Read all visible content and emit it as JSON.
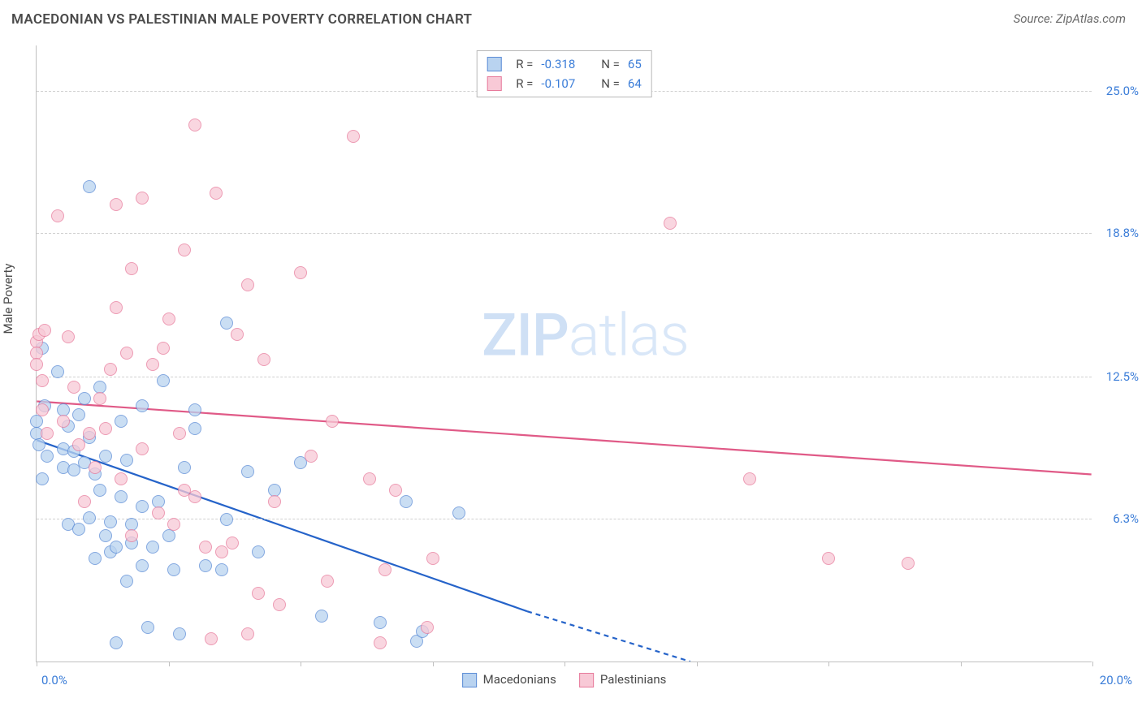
{
  "title": "MACEDONIAN VS PALESTINIAN MALE POVERTY CORRELATION CHART",
  "source": "Source: ZipAtlas.com",
  "ylabel": "Male Poverty",
  "watermark_bold": "ZIP",
  "watermark_thin": "atlas",
  "chart": {
    "type": "scatter",
    "xlim": [
      0,
      20
    ],
    "ylim": [
      0,
      27
    ],
    "x_ticks": [
      0,
      2.5,
      5,
      7.5,
      10,
      12.5,
      15,
      17.5,
      20
    ],
    "x_tick_labels_shown": {
      "first": "0.0%",
      "last": "20.0%"
    },
    "y_gridlines": [
      6.3,
      12.5,
      18.8,
      25.0
    ],
    "y_tick_labels": [
      "6.3%",
      "12.5%",
      "18.8%",
      "25.0%"
    ],
    "grid_color": "#d0d0d0",
    "background_color": "#ffffff",
    "marker_size": 16,
    "series": [
      {
        "name": "Macedonians",
        "color_fill": "#b9d3f0",
        "color_stroke": "#5b8cd6",
        "R": "-0.318",
        "N": "65",
        "trend": {
          "x1": 0,
          "y1": 9.7,
          "x2": 9.3,
          "y2": 2.2,
          "extrap_x2": 14.5,
          "extrap_y2": -1.5,
          "stroke": "#2563c9",
          "width": 2.2
        },
        "points": [
          [
            0.0,
            10.5
          ],
          [
            0.0,
            10.0
          ],
          [
            0.05,
            9.5
          ],
          [
            0.1,
            13.7
          ],
          [
            0.1,
            8.0
          ],
          [
            0.15,
            11.2
          ],
          [
            0.2,
            9.0
          ],
          [
            1.0,
            20.8
          ],
          [
            0.4,
            12.7
          ],
          [
            0.5,
            9.3
          ],
          [
            0.5,
            8.5
          ],
          [
            0.5,
            11.0
          ],
          [
            0.6,
            10.3
          ],
          [
            0.6,
            6.0
          ],
          [
            0.7,
            9.2
          ],
          [
            0.7,
            8.4
          ],
          [
            0.8,
            5.8
          ],
          [
            0.8,
            10.8
          ],
          [
            0.9,
            11.5
          ],
          [
            0.9,
            8.7
          ],
          [
            1.0,
            9.8
          ],
          [
            1.0,
            6.3
          ],
          [
            1.1,
            4.5
          ],
          [
            1.1,
            8.2
          ],
          [
            1.2,
            7.5
          ],
          [
            1.2,
            12.0
          ],
          [
            1.3,
            5.5
          ],
          [
            1.3,
            9.0
          ],
          [
            1.4,
            4.8
          ],
          [
            1.4,
            6.1
          ],
          [
            1.5,
            0.8
          ],
          [
            1.5,
            5.0
          ],
          [
            1.6,
            10.5
          ],
          [
            1.6,
            7.2
          ],
          [
            1.7,
            8.8
          ],
          [
            1.7,
            3.5
          ],
          [
            1.8,
            5.2
          ],
          [
            1.8,
            6.0
          ],
          [
            2.0,
            6.8
          ],
          [
            2.0,
            11.2
          ],
          [
            2.0,
            4.2
          ],
          [
            2.1,
            1.5
          ],
          [
            2.2,
            5.0
          ],
          [
            2.3,
            7.0
          ],
          [
            2.4,
            12.3
          ],
          [
            2.5,
            5.5
          ],
          [
            2.6,
            4.0
          ],
          [
            2.7,
            1.2
          ],
          [
            2.8,
            8.5
          ],
          [
            3.0,
            11.0
          ],
          [
            3.0,
            10.2
          ],
          [
            3.2,
            4.2
          ],
          [
            3.5,
            4.0
          ],
          [
            3.6,
            14.8
          ],
          [
            3.6,
            6.2
          ],
          [
            4.0,
            8.3
          ],
          [
            4.2,
            4.8
          ],
          [
            4.5,
            7.5
          ],
          [
            5.0,
            8.7
          ],
          [
            5.4,
            2.0
          ],
          [
            6.5,
            1.7
          ],
          [
            7.0,
            7.0
          ],
          [
            7.2,
            0.9
          ],
          [
            7.3,
            1.3
          ],
          [
            8.0,
            6.5
          ]
        ]
      },
      {
        "name": "Palestinians",
        "color_fill": "#f8c9d6",
        "color_stroke": "#e77a9b",
        "R": "-0.107",
        "N": "64",
        "trend": {
          "x1": 0,
          "y1": 11.4,
          "x2": 20,
          "y2": 8.2,
          "stroke": "#e05a87",
          "width": 2.2
        },
        "points": [
          [
            0.0,
            14.0
          ],
          [
            0.0,
            13.5
          ],
          [
            0.0,
            13.0
          ],
          [
            0.05,
            14.3
          ],
          [
            0.1,
            12.3
          ],
          [
            0.1,
            11.0
          ],
          [
            0.15,
            14.5
          ],
          [
            0.2,
            10.0
          ],
          [
            0.4,
            19.5
          ],
          [
            0.5,
            10.5
          ],
          [
            0.6,
            14.2
          ],
          [
            0.7,
            12.0
          ],
          [
            0.8,
            9.5
          ],
          [
            0.9,
            7.0
          ],
          [
            1.0,
            10.0
          ],
          [
            1.1,
            8.5
          ],
          [
            1.2,
            11.5
          ],
          [
            1.3,
            10.2
          ],
          [
            1.4,
            12.8
          ],
          [
            1.5,
            15.5
          ],
          [
            1.5,
            20.0
          ],
          [
            1.6,
            8.0
          ],
          [
            1.7,
            13.5
          ],
          [
            1.8,
            5.5
          ],
          [
            1.8,
            17.2
          ],
          [
            2.0,
            20.3
          ],
          [
            2.0,
            9.3
          ],
          [
            2.2,
            13.0
          ],
          [
            2.3,
            6.5
          ],
          [
            2.4,
            13.7
          ],
          [
            2.5,
            15.0
          ],
          [
            2.6,
            6.0
          ],
          [
            2.7,
            10.0
          ],
          [
            2.8,
            7.5
          ],
          [
            2.8,
            18.0
          ],
          [
            3.0,
            7.2
          ],
          [
            3.0,
            23.5
          ],
          [
            3.2,
            5.0
          ],
          [
            3.3,
            1.0
          ],
          [
            3.4,
            20.5
          ],
          [
            3.5,
            4.8
          ],
          [
            3.7,
            5.2
          ],
          [
            3.8,
            14.3
          ],
          [
            4.0,
            1.2
          ],
          [
            4.0,
            16.5
          ],
          [
            4.2,
            3.0
          ],
          [
            4.3,
            13.2
          ],
          [
            4.5,
            7.0
          ],
          [
            4.6,
            2.5
          ],
          [
            5.0,
            17.0
          ],
          [
            5.2,
            9.0
          ],
          [
            5.5,
            3.5
          ],
          [
            5.6,
            10.5
          ],
          [
            6.0,
            23.0
          ],
          [
            6.3,
            8.0
          ],
          [
            6.5,
            0.8
          ],
          [
            6.6,
            4.0
          ],
          [
            6.8,
            7.5
          ],
          [
            7.4,
            1.5
          ],
          [
            7.5,
            4.5
          ],
          [
            12.0,
            19.2
          ],
          [
            13.5,
            8.0
          ],
          [
            15.0,
            4.5
          ],
          [
            16.5,
            4.3
          ]
        ]
      }
    ],
    "legend_bottom": [
      {
        "label": "Macedonians",
        "fill": "#b9d3f0",
        "stroke": "#5b8cd6"
      },
      {
        "label": "Palestinians",
        "fill": "#f8c9d6",
        "stroke": "#e77a9b"
      }
    ]
  }
}
